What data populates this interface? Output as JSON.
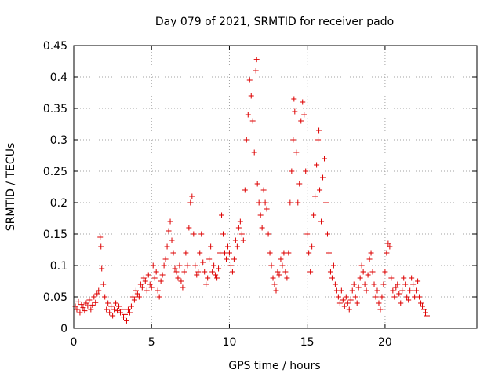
{
  "chart_data": {
    "type": "scatter",
    "title": "Day 079 of 2021, SRMTID for receiver pado",
    "xlabel": "GPS time / hours",
    "ylabel": "SRMTID / TECUs",
    "xlim": [
      0,
      25.9
    ],
    "ylim": [
      0,
      0.45
    ],
    "xticks": [
      0,
      5,
      10,
      15,
      20
    ],
    "xtick_labels": [
      "0",
      "5",
      "10",
      "15",
      "20"
    ],
    "yticks": [
      0,
      0.05,
      0.1,
      0.15,
      0.2,
      0.25,
      0.3,
      0.35,
      0.4,
      0.45
    ],
    "ytick_labels": [
      "0",
      "0.05",
      "0.1",
      "0.15",
      "0.2",
      "0.25",
      "0.3",
      "0.35",
      "0.4",
      "0.45"
    ],
    "grid": true,
    "marker": "+",
    "color": "#dd0000",
    "series": [
      {
        "name": "SRMTID",
        "points": [
          [
            0.1,
            0.035
          ],
          [
            0.2,
            0.03
          ],
          [
            0.3,
            0.042
          ],
          [
            0.4,
            0.025
          ],
          [
            0.5,
            0.038
          ],
          [
            0.6,
            0.033
          ],
          [
            0.7,
            0.028
          ],
          [
            0.8,
            0.04
          ],
          [
            0.9,
            0.036
          ],
          [
            1.0,
            0.045
          ],
          [
            1.1,
            0.03
          ],
          [
            1.2,
            0.037
          ],
          [
            1.3,
            0.05
          ],
          [
            1.4,
            0.041
          ],
          [
            1.5,
            0.055
          ],
          [
            1.6,
            0.06
          ],
          [
            1.7,
            0.145
          ],
          [
            1.75,
            0.13
          ],
          [
            1.8,
            0.095
          ],
          [
            1.9,
            0.07
          ],
          [
            2.0,
            0.05
          ],
          [
            2.1,
            0.03
          ],
          [
            2.2,
            0.04
          ],
          [
            2.3,
            0.025
          ],
          [
            2.4,
            0.035
          ],
          [
            2.5,
            0.02
          ],
          [
            2.6,
            0.03
          ],
          [
            2.7,
            0.04
          ],
          [
            2.8,
            0.028
          ],
          [
            2.9,
            0.035
          ],
          [
            3.0,
            0.025
          ],
          [
            3.1,
            0.03
          ],
          [
            3.2,
            0.018
          ],
          [
            3.3,
            0.022
          ],
          [
            3.4,
            0.012
          ],
          [
            3.5,
            0.03
          ],
          [
            3.6,
            0.025
          ],
          [
            3.7,
            0.035
          ],
          [
            3.8,
            0.05
          ],
          [
            3.9,
            0.045
          ],
          [
            4.0,
            0.06
          ],
          [
            4.1,
            0.055
          ],
          [
            4.2,
            0.05
          ],
          [
            4.3,
            0.07
          ],
          [
            4.4,
            0.065
          ],
          [
            4.5,
            0.08
          ],
          [
            4.6,
            0.075
          ],
          [
            4.7,
            0.06
          ],
          [
            4.8,
            0.085
          ],
          [
            4.9,
            0.07
          ],
          [
            5.0,
            0.065
          ],
          [
            5.1,
            0.1
          ],
          [
            5.2,
            0.08
          ],
          [
            5.3,
            0.09
          ],
          [
            5.4,
            0.06
          ],
          [
            5.5,
            0.05
          ],
          [
            5.6,
            0.075
          ],
          [
            5.7,
            0.085
          ],
          [
            5.8,
            0.1
          ],
          [
            5.9,
            0.11
          ],
          [
            6.0,
            0.13
          ],
          [
            6.1,
            0.155
          ],
          [
            6.2,
            0.17
          ],
          [
            6.3,
            0.14
          ],
          [
            6.4,
            0.12
          ],
          [
            6.5,
            0.095
          ],
          [
            6.6,
            0.09
          ],
          [
            6.7,
            0.08
          ],
          [
            6.8,
            0.1
          ],
          [
            6.9,
            0.075
          ],
          [
            7.0,
            0.065
          ],
          [
            7.1,
            0.09
          ],
          [
            7.2,
            0.12
          ],
          [
            7.3,
            0.1
          ],
          [
            7.4,
            0.16
          ],
          [
            7.5,
            0.2
          ],
          [
            7.6,
            0.21
          ],
          [
            7.7,
            0.15
          ],
          [
            7.8,
            0.1
          ],
          [
            7.9,
            0.085
          ],
          [
            8.0,
            0.09
          ],
          [
            8.1,
            0.12
          ],
          [
            8.2,
            0.15
          ],
          [
            8.3,
            0.105
          ],
          [
            8.4,
            0.09
          ],
          [
            8.5,
            0.07
          ],
          [
            8.6,
            0.08
          ],
          [
            8.7,
            0.11
          ],
          [
            8.8,
            0.13
          ],
          [
            8.9,
            0.09
          ],
          [
            9.0,
            0.1
          ],
          [
            9.1,
            0.085
          ],
          [
            9.2,
            0.08
          ],
          [
            9.3,
            0.095
          ],
          [
            9.4,
            0.12
          ],
          [
            9.5,
            0.18
          ],
          [
            9.6,
            0.15
          ],
          [
            9.7,
            0.12
          ],
          [
            9.8,
            0.11
          ],
          [
            9.9,
            0.13
          ],
          [
            10.0,
            0.12
          ],
          [
            10.1,
            0.1
          ],
          [
            10.2,
            0.09
          ],
          [
            10.3,
            0.11
          ],
          [
            10.4,
            0.14
          ],
          [
            10.5,
            0.13
          ],
          [
            10.6,
            0.16
          ],
          [
            10.7,
            0.17
          ],
          [
            10.8,
            0.15
          ],
          [
            10.9,
            0.14
          ],
          [
            11.0,
            0.22
          ],
          [
            11.1,
            0.3
          ],
          [
            11.2,
            0.34
          ],
          [
            11.3,
            0.395
          ],
          [
            11.4,
            0.37
          ],
          [
            11.5,
            0.33
          ],
          [
            11.6,
            0.28
          ],
          [
            11.7,
            0.41
          ],
          [
            11.75,
            0.428
          ],
          [
            11.8,
            0.23
          ],
          [
            11.9,
            0.2
          ],
          [
            12.0,
            0.18
          ],
          [
            12.1,
            0.16
          ],
          [
            12.2,
            0.22
          ],
          [
            12.3,
            0.2
          ],
          [
            12.4,
            0.19
          ],
          [
            12.5,
            0.15
          ],
          [
            12.6,
            0.12
          ],
          [
            12.7,
            0.1
          ],
          [
            12.8,
            0.08
          ],
          [
            12.9,
            0.07
          ],
          [
            13.0,
            0.06
          ],
          [
            13.1,
            0.09
          ],
          [
            13.2,
            0.085
          ],
          [
            13.3,
            0.11
          ],
          [
            13.4,
            0.1
          ],
          [
            13.5,
            0.12
          ],
          [
            13.6,
            0.09
          ],
          [
            13.7,
            0.08
          ],
          [
            13.8,
            0.12
          ],
          [
            13.9,
            0.2
          ],
          [
            14.0,
            0.25
          ],
          [
            14.1,
            0.3
          ],
          [
            14.15,
            0.365
          ],
          [
            14.2,
            0.345
          ],
          [
            14.3,
            0.28
          ],
          [
            14.4,
            0.2
          ],
          [
            14.5,
            0.23
          ],
          [
            14.6,
            0.33
          ],
          [
            14.7,
            0.36
          ],
          [
            14.8,
            0.34
          ],
          [
            14.9,
            0.25
          ],
          [
            15.0,
            0.15
          ],
          [
            15.1,
            0.12
          ],
          [
            15.2,
            0.09
          ],
          [
            15.3,
            0.13
          ],
          [
            15.4,
            0.18
          ],
          [
            15.5,
            0.21
          ],
          [
            15.6,
            0.26
          ],
          [
            15.7,
            0.3
          ],
          [
            15.75,
            0.315
          ],
          [
            15.8,
            0.22
          ],
          [
            15.9,
            0.17
          ],
          [
            16.0,
            0.24
          ],
          [
            16.1,
            0.27
          ],
          [
            16.2,
            0.2
          ],
          [
            16.3,
            0.15
          ],
          [
            16.4,
            0.12
          ],
          [
            16.5,
            0.09
          ],
          [
            16.6,
            0.08
          ],
          [
            16.7,
            0.1
          ],
          [
            16.8,
            0.07
          ],
          [
            16.9,
            0.06
          ],
          [
            17.0,
            0.05
          ],
          [
            17.1,
            0.04
          ],
          [
            17.2,
            0.06
          ],
          [
            17.3,
            0.045
          ],
          [
            17.4,
            0.035
          ],
          [
            17.5,
            0.05
          ],
          [
            17.6,
            0.04
          ],
          [
            17.7,
            0.03
          ],
          [
            17.8,
            0.045
          ],
          [
            17.9,
            0.06
          ],
          [
            18.0,
            0.07
          ],
          [
            18.1,
            0.05
          ],
          [
            18.2,
            0.04
          ],
          [
            18.3,
            0.065
          ],
          [
            18.4,
            0.08
          ],
          [
            18.5,
            0.1
          ],
          [
            18.6,
            0.09
          ],
          [
            18.7,
            0.07
          ],
          [
            18.8,
            0.06
          ],
          [
            18.9,
            0.085
          ],
          [
            19.0,
            0.11
          ],
          [
            19.1,
            0.12
          ],
          [
            19.2,
            0.09
          ],
          [
            19.3,
            0.07
          ],
          [
            19.4,
            0.05
          ],
          [
            19.5,
            0.06
          ],
          [
            19.6,
            0.04
          ],
          [
            19.7,
            0.03
          ],
          [
            19.8,
            0.05
          ],
          [
            19.9,
            0.07
          ],
          [
            20.0,
            0.09
          ],
          [
            20.1,
            0.12
          ],
          [
            20.2,
            0.135
          ],
          [
            20.3,
            0.13
          ],
          [
            20.4,
            0.08
          ],
          [
            20.5,
            0.06
          ],
          [
            20.6,
            0.05
          ],
          [
            20.7,
            0.065
          ],
          [
            20.8,
            0.07
          ],
          [
            20.9,
            0.055
          ],
          [
            21.0,
            0.04
          ],
          [
            21.1,
            0.06
          ],
          [
            21.2,
            0.08
          ],
          [
            21.3,
            0.07
          ],
          [
            21.4,
            0.05
          ],
          [
            21.5,
            0.045
          ],
          [
            21.6,
            0.06
          ],
          [
            21.7,
            0.08
          ],
          [
            21.8,
            0.07
          ],
          [
            21.9,
            0.05
          ],
          [
            22.0,
            0.06
          ],
          [
            22.1,
            0.075
          ],
          [
            22.2,
            0.05
          ],
          [
            22.3,
            0.04
          ],
          [
            22.4,
            0.035
          ],
          [
            22.5,
            0.03
          ],
          [
            22.6,
            0.025
          ],
          [
            22.7,
            0.02
          ]
        ]
      }
    ]
  }
}
